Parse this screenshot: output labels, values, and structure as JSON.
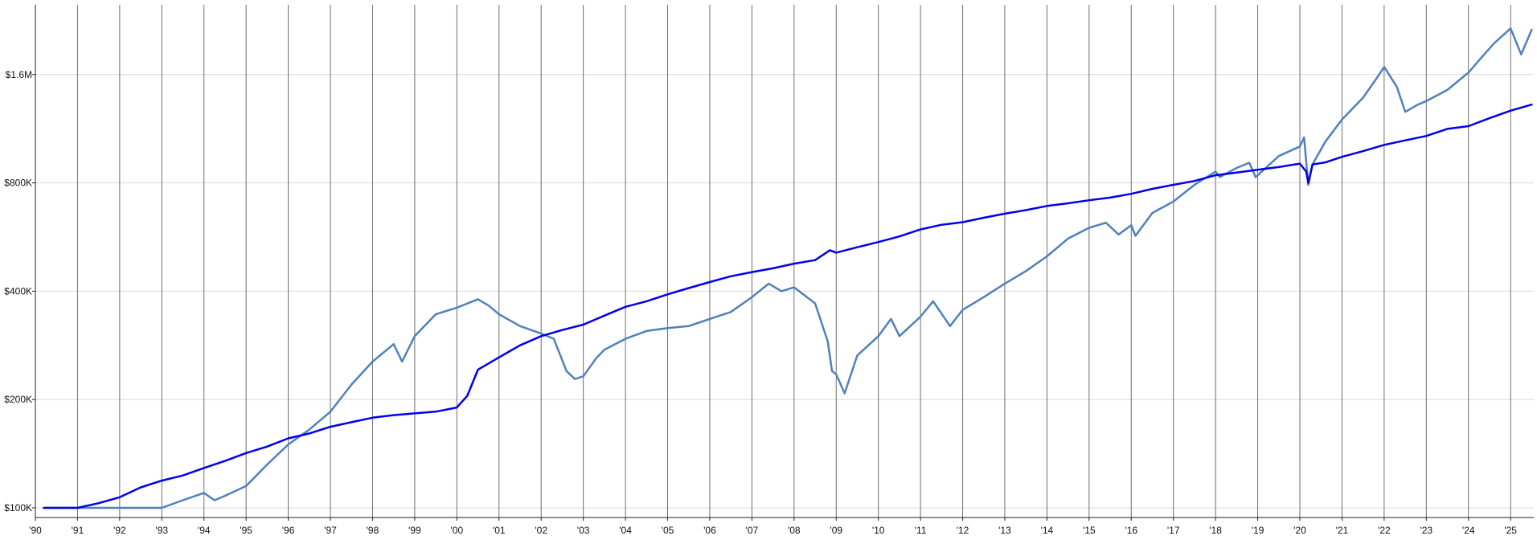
{
  "chart_data": {
    "type": "line",
    "title": "",
    "xlabel": "",
    "ylabel": "",
    "y_scale": "log",
    "xlim": [
      1990.0,
      2025.55
    ],
    "ylim": [
      94000,
      2500000
    ],
    "grid": {
      "vertical": true,
      "horizontal": true
    },
    "legend": "none",
    "x_ticks": [
      {
        "value": 1990,
        "label": "'90"
      },
      {
        "value": 1991,
        "label": "'91"
      },
      {
        "value": 1992,
        "label": "'92"
      },
      {
        "value": 1993,
        "label": "'93"
      },
      {
        "value": 1994,
        "label": "'94"
      },
      {
        "value": 1995,
        "label": "'95"
      },
      {
        "value": 1996,
        "label": "'96"
      },
      {
        "value": 1997,
        "label": "'97"
      },
      {
        "value": 1998,
        "label": "'98"
      },
      {
        "value": 1999,
        "label": "'99"
      },
      {
        "value": 2000,
        "label": "'00"
      },
      {
        "value": 2001,
        "label": "'01"
      },
      {
        "value": 2002,
        "label": "'02"
      },
      {
        "value": 2003,
        "label": "'03"
      },
      {
        "value": 2004,
        "label": "'04"
      },
      {
        "value": 2005,
        "label": "'05"
      },
      {
        "value": 2006,
        "label": "'06"
      },
      {
        "value": 2007,
        "label": "'07"
      },
      {
        "value": 2008,
        "label": "'08"
      },
      {
        "value": 2009,
        "label": "'09"
      },
      {
        "value": 2010,
        "label": "'10"
      },
      {
        "value": 2011,
        "label": "'11"
      },
      {
        "value": 2012,
        "label": "'12"
      },
      {
        "value": 2013,
        "label": "'13"
      },
      {
        "value": 2014,
        "label": "'14"
      },
      {
        "value": 2015,
        "label": "'15"
      },
      {
        "value": 2016,
        "label": "'16"
      },
      {
        "value": 2017,
        "label": "'17"
      },
      {
        "value": 2018,
        "label": "'18"
      },
      {
        "value": 2019,
        "label": "'19"
      },
      {
        "value": 2020,
        "label": "'20"
      },
      {
        "value": 2021,
        "label": "'21"
      },
      {
        "value": 2022,
        "label": "'22"
      },
      {
        "value": 2023,
        "label": "'23"
      },
      {
        "value": 2024,
        "label": "'24"
      },
      {
        "value": 2025,
        "label": "'25"
      }
    ],
    "y_ticks": [
      {
        "value": 100000,
        "label": "$100K"
      },
      {
        "value": 200000,
        "label": "$200K"
      },
      {
        "value": 400000,
        "label": "$400K"
      },
      {
        "value": 800000,
        "label": "$800K"
      },
      {
        "value": 1600000,
        "label": "$1.6M"
      }
    ],
    "series": [
      {
        "color": "#0000ee",
        "x": [
          1990.2,
          1991.0,
          1991.5,
          1992.0,
          1992.5,
          1993.0,
          1993.5,
          1994.0,
          1994.5,
          1995.0,
          1995.5,
          1996.0,
          1996.5,
          1997.0,
          1997.5,
          1998.0,
          1998.5,
          1999.0,
          1999.5,
          2000.0,
          2000.25,
          2000.5,
          2001.0,
          2001.5,
          2002.0,
          2002.5,
          2003.0,
          2003.5,
          2004.0,
          2004.5,
          2005.0,
          2005.5,
          2006.0,
          2006.5,
          2007.0,
          2007.5,
          2008.0,
          2008.5,
          2008.85,
          2009.0,
          2009.5,
          2010.0,
          2010.5,
          2011.0,
          2011.5,
          2012.0,
          2012.5,
          2013.0,
          2013.5,
          2014.0,
          2014.5,
          2015.0,
          2015.5,
          2016.0,
          2016.5,
          2017.0,
          2017.5,
          2018.0,
          2018.5,
          2019.0,
          2019.5,
          2020.0,
          2020.15,
          2020.2,
          2020.3,
          2020.6,
          2021.0,
          2021.5,
          2022.0,
          2022.5,
          2023.0,
          2023.5,
          2024.0,
          2024.5,
          2025.0,
          2025.5
        ],
        "y": [
          100000,
          100000,
          103000,
          107000,
          114000,
          119000,
          123000,
          129000,
          135000,
          142000,
          148000,
          156000,
          161000,
          168000,
          173000,
          178000,
          181000,
          183000,
          185000,
          190000,
          205000,
          242000,
          262000,
          283000,
          300000,
          312000,
          323000,
          342000,
          362000,
          375000,
          392000,
          408000,
          424000,
          440000,
          452000,
          463000,
          477000,
          488000,
          520000,
          512000,
          530000,
          548000,
          568000,
          594000,
          612000,
          622000,
          640000,
          657000,
          672000,
          690000,
          702000,
          716000,
          728000,
          746000,
          770000,
          790000,
          810000,
          840000,
          855000,
          870000,
          885000,
          905000,
          860000,
          800000,
          900000,
          912000,
          945000,
          980000,
          1020000,
          1050000,
          1080000,
          1130000,
          1150000,
          1210000,
          1270000,
          1320000
        ]
      },
      {
        "color": "#4f81bd",
        "x": [
          1990.2,
          1991.0,
          1992.0,
          1993.0,
          1993.5,
          1994.0,
          1994.25,
          1994.5,
          1995.0,
          1995.5,
          1996.0,
          1996.5,
          1997.0,
          1997.5,
          1998.0,
          1998.5,
          1998.7,
          1999.0,
          1999.5,
          2000.0,
          2000.5,
          2000.75,
          2001.0,
          2001.5,
          2002.0,
          2002.3,
          2002.6,
          2002.8,
          2003.0,
          2003.3,
          2003.5,
          2004.0,
          2004.5,
          2005.0,
          2005.5,
          2006.0,
          2006.5,
          2007.0,
          2007.4,
          2007.7,
          2008.0,
          2008.5,
          2008.8,
          2008.9,
          2009.0,
          2009.2,
          2009.5,
          2010.0,
          2010.3,
          2010.5,
          2011.0,
          2011.3,
          2011.7,
          2012.0,
          2012.5,
          2013.0,
          2013.5,
          2014.0,
          2014.5,
          2015.0,
          2015.4,
          2015.7,
          2016.0,
          2016.1,
          2016.5,
          2017.0,
          2017.5,
          2018.0,
          2018.1,
          2018.5,
          2018.8,
          2018.95,
          2019.0,
          2019.5,
          2020.0,
          2020.1,
          2020.2,
          2020.3,
          2020.6,
          2021.0,
          2021.5,
          2021.8,
          2022.0,
          2022.3,
          2022.5,
          2022.8,
          2023.0,
          2023.5,
          2024.0,
          2024.3,
          2024.6,
          2025.0,
          2025.25,
          2025.5
        ],
        "y": [
          100000,
          100000,
          100000,
          100000,
          105000,
          110000,
          105000,
          108000,
          115000,
          132000,
          150000,
          165000,
          185000,
          220000,
          255000,
          285000,
          255000,
          300000,
          345000,
          360000,
          380000,
          365000,
          345000,
          320000,
          305000,
          295000,
          240000,
          228000,
          232000,
          260000,
          275000,
          295000,
          310000,
          316000,
          320000,
          335000,
          350000,
          385000,
          420000,
          400000,
          410000,
          370000,
          290000,
          240000,
          235000,
          208000,
          265000,
          300000,
          335000,
          300000,
          340000,
          375000,
          320000,
          355000,
          385000,
          420000,
          455000,
          500000,
          560000,
          600000,
          620000,
          575000,
          610000,
          570000,
          660000,
          710000,
          790000,
          860000,
          830000,
          880000,
          910000,
          830000,
          840000,
          950000,
          1010000,
          1070000,
          790000,
          900000,
          1040000,
          1200000,
          1380000,
          1550000,
          1680000,
          1480000,
          1260000,
          1320000,
          1350000,
          1450000,
          1620000,
          1780000,
          1950000,
          2150000,
          1820000,
          2130000
        ]
      }
    ]
  }
}
